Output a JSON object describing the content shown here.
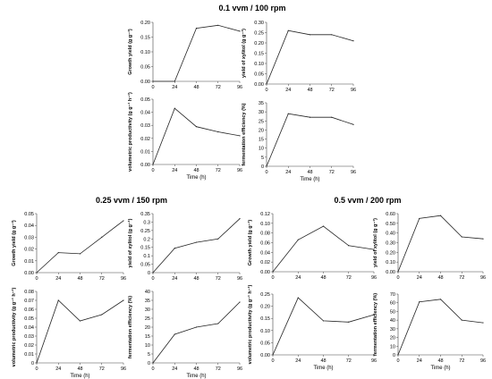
{
  "groups": [
    {
      "title": "0.1 vvm / 100 rpm"
    },
    {
      "title": "0.25 vvm / 150 rpm"
    },
    {
      "title": "0.5 vvm / 200 rpm"
    }
  ],
  "chart_data": [
    {
      "type": "line",
      "group": 0,
      "ylabel": "Growth yield (g g⁻¹)",
      "x": [
        0,
        24,
        48,
        72,
        96
      ],
      "values": [
        0.0,
        0.0,
        0.18,
        0.19,
        0.17
      ],
      "ylim": [
        0,
        0.2
      ],
      "yticks": [
        "0.00",
        "0.05",
        "0.10",
        "0.15",
        "0.20"
      ],
      "xticks": [
        "0",
        "24",
        "48",
        "72",
        "96"
      ],
      "xlabel": ""
    },
    {
      "type": "line",
      "group": 0,
      "ylabel": "yield of xylitol (g g⁻¹)",
      "x": [
        0,
        24,
        48,
        72,
        96
      ],
      "values": [
        0.0,
        0.26,
        0.24,
        0.24,
        0.21
      ],
      "ylim": [
        0,
        0.3
      ],
      "yticks": [
        "0.00",
        "0.05",
        "0.10",
        "0.15",
        "0.20",
        "0.25",
        "0.30"
      ],
      "xticks": [
        "0",
        "24",
        "48",
        "72",
        "96"
      ],
      "xlabel": ""
    },
    {
      "type": "line",
      "group": 0,
      "ylabel": "volumetric productivity (g g⁻¹ h⁻¹)",
      "x": [
        0,
        24,
        48,
        72,
        96
      ],
      "values": [
        0.0,
        0.043,
        0.029,
        0.025,
        0.022
      ],
      "ylim": [
        0,
        0.05
      ],
      "yticks": [
        "0.00",
        "0.01",
        "0.02",
        "0.03",
        "0.04",
        "0.05"
      ],
      "xticks": [
        "0",
        "24",
        "48",
        "72",
        "96"
      ],
      "xlabel": "Time (h)"
    },
    {
      "type": "line",
      "group": 0,
      "ylabel": "fermentation efficiency (%)",
      "x": [
        0,
        24,
        48,
        72,
        96
      ],
      "values": [
        0,
        29,
        27,
        27,
        23
      ],
      "ylim": [
        0,
        35
      ],
      "yticks": [
        "0",
        "5",
        "10",
        "15",
        "20",
        "25",
        "30",
        "35"
      ],
      "xticks": [
        "0",
        "24",
        "48",
        "72",
        "96"
      ],
      "xlabel": "Time (h)"
    },
    {
      "type": "line",
      "group": 1,
      "ylabel": "Growth yield (g g⁻¹)",
      "x": [
        0,
        24,
        48,
        72,
        96
      ],
      "values": [
        0.0,
        0.017,
        0.016,
        0.03,
        0.044
      ],
      "ylim": [
        0,
        0.05
      ],
      "yticks": [
        "0.00",
        "0.01",
        "0.02",
        "0.03",
        "0.04",
        "0.05"
      ],
      "xticks": [
        "0",
        "24",
        "48",
        "72",
        "96"
      ],
      "xlabel": ""
    },
    {
      "type": "line",
      "group": 1,
      "ylabel": "yield of xylitol (g g⁻¹)",
      "x": [
        0,
        24,
        48,
        72,
        96
      ],
      "values": [
        0.0,
        0.145,
        0.18,
        0.2,
        0.32
      ],
      "ylim": [
        0,
        0.35
      ],
      "yticks": [
        "0",
        "0.05",
        "0.1",
        "0.15",
        "0.2",
        "0.25",
        "0.3",
        "0.35"
      ],
      "xticks": [
        "0",
        "24",
        "48",
        "72",
        "96"
      ],
      "xlabel": ""
    },
    {
      "type": "line",
      "group": 1,
      "ylabel": "volumetric productivity (g g⁻¹ h⁻¹)",
      "x": [
        0,
        24,
        48,
        72,
        96
      ],
      "values": [
        0.0,
        0.07,
        0.047,
        0.054,
        0.07
      ],
      "ylim": [
        0,
        0.08
      ],
      "yticks": [
        "0",
        "0.01",
        "0.02",
        "0.03",
        "0.04",
        "0.05",
        "0.06",
        "0.07",
        "0.08"
      ],
      "xticks": [
        "0",
        "24",
        "48",
        "72",
        "96"
      ],
      "xlabel": "Time (h)"
    },
    {
      "type": "line",
      "group": 1,
      "ylabel": "fermentation efficiency (%)",
      "x": [
        0,
        24,
        48,
        72,
        96
      ],
      "values": [
        0,
        16,
        20,
        22,
        34
      ],
      "ylim": [
        0,
        40
      ],
      "yticks": [
        "0",
        "5",
        "10",
        "15",
        "20",
        "25",
        "30",
        "35",
        "40"
      ],
      "xticks": [
        "0",
        "24",
        "48",
        "72",
        "96"
      ],
      "xlabel": "Time (h)"
    },
    {
      "type": "line",
      "group": 2,
      "ylabel": "Growth yield (g g⁻¹)",
      "x": [
        0,
        24,
        48,
        72,
        96
      ],
      "values": [
        0.0,
        0.066,
        0.094,
        0.054,
        0.046
      ],
      "ylim": [
        0,
        0.12
      ],
      "yticks": [
        "0.00",
        "0.02",
        "0.04",
        "0.06",
        "0.08",
        "0.10",
        "0.12"
      ],
      "xticks": [
        "0",
        "24",
        "48",
        "72",
        "96"
      ],
      "xlabel": ""
    },
    {
      "type": "line",
      "group": 2,
      "ylabel": "yield of xylitol (g g⁻¹)",
      "x": [
        0,
        24,
        48,
        72,
        96
      ],
      "values": [
        0.0,
        0.55,
        0.58,
        0.36,
        0.34
      ],
      "ylim": [
        0,
        0.6
      ],
      "yticks": [
        "0.00",
        "0.10",
        "0.20",
        "0.30",
        "0.40",
        "0.50",
        "0.60"
      ],
      "xticks": [
        "0",
        "24",
        "48",
        "72",
        "96"
      ],
      "xlabel": ""
    },
    {
      "type": "line",
      "group": 2,
      "ylabel": "volumetric productivity (g g⁻¹ h⁻¹)",
      "x": [
        0,
        24,
        48,
        72,
        96
      ],
      "values": [
        0.0,
        0.235,
        0.14,
        0.135,
        0.165
      ],
      "ylim": [
        0,
        0.25
      ],
      "yticks": [
        "0.00",
        "0.05",
        "0.10",
        "0.15",
        "0.20",
        "0.25"
      ],
      "xticks": [
        "0",
        "24",
        "48",
        "72",
        "96"
      ],
      "xlabel": "Time (h)"
    },
    {
      "type": "line",
      "group": 2,
      "ylabel": "fermentation efficiency (%)",
      "x": [
        0,
        24,
        48,
        72,
        96
      ],
      "values": [
        0,
        61,
        64,
        40,
        37
      ],
      "ylim": [
        0,
        70
      ],
      "yticks": [
        "0",
        "10",
        "20",
        "30",
        "40",
        "50",
        "60",
        "70"
      ],
      "xticks": [
        "0",
        "24",
        "48",
        "72",
        "96"
      ],
      "xlabel": "Time (h)"
    }
  ]
}
